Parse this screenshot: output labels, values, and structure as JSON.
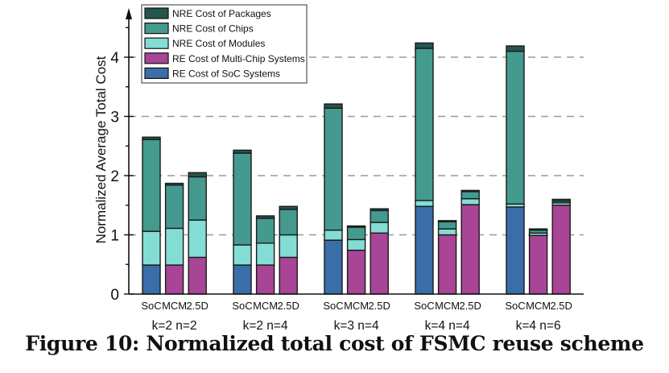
{
  "chart_data": {
    "type": "bar",
    "stacked": true,
    "title": "",
    "ylabel": "Normalized Average Total Cost",
    "xlabel": "",
    "ylim": [
      0,
      4.8
    ],
    "yticks": [
      0,
      1,
      2,
      3,
      4
    ],
    "ytick_labels": [
      "0",
      "1",
      "2",
      "3",
      "4"
    ],
    "grid": "horizontal dashed at y=1,2,3,4",
    "legend_position": "top-left",
    "groups": [
      "k=2 n=2",
      "k=2 n=4",
      "k=3 n=4",
      "k=4 n=4",
      "k=4 n=6"
    ],
    "bar_labels": [
      "SoC",
      "MCM",
      "2.5D"
    ],
    "legend": [
      {
        "name": "NRE Cost of Packages",
        "color": "#24564d"
      },
      {
        "name": "NRE Cost of Chips",
        "color": "#449a8e"
      },
      {
        "name": "NRE Cost of Modules",
        "color": "#84ddd4"
      },
      {
        "name": "RE Cost of Multi-Chip Systems",
        "color": "#a84596"
      },
      {
        "name": "RE Cost of SoC Systems",
        "color": "#3a6ea8"
      }
    ],
    "series_order_bottom_to_top": [
      "RE",
      "NRE Cost of Modules",
      "NRE Cost of Chips",
      "NRE Cost of Packages"
    ],
    "bars": [
      {
        "group": "k=2 n=2",
        "label": "SoC",
        "re_type": "soc",
        "re": 0.49,
        "modules": 0.57,
        "chips": 1.55,
        "packages": 0.04,
        "total": 2.65
      },
      {
        "group": "k=2 n=2",
        "label": "MCM",
        "re_type": "mcm",
        "re": 0.49,
        "modules": 0.62,
        "chips": 0.73,
        "packages": 0.03,
        "total": 1.87
      },
      {
        "group": "k=2 n=2",
        "label": "2.5D",
        "re_type": "mcm",
        "re": 0.62,
        "modules": 0.63,
        "chips": 0.73,
        "packages": 0.07,
        "total": 2.05
      },
      {
        "group": "k=2 n=4",
        "label": "SoC",
        "re_type": "soc",
        "re": 0.49,
        "modules": 0.34,
        "chips": 1.55,
        "packages": 0.05,
        "total": 2.43
      },
      {
        "group": "k=2 n=4",
        "label": "MCM",
        "re_type": "mcm",
        "re": 0.49,
        "modules": 0.37,
        "chips": 0.42,
        "packages": 0.04,
        "total": 1.32
      },
      {
        "group": "k=2 n=4",
        "label": "2.5D",
        "re_type": "mcm",
        "re": 0.62,
        "modules": 0.38,
        "chips": 0.43,
        "packages": 0.05,
        "total": 1.48
      },
      {
        "group": "k=3 n=4",
        "label": "SoC",
        "re_type": "soc",
        "re": 0.91,
        "modules": 0.17,
        "chips": 2.06,
        "packages": 0.07,
        "total": 3.21
      },
      {
        "group": "k=3 n=4",
        "label": "MCM",
        "re_type": "mcm",
        "re": 0.74,
        "modules": 0.18,
        "chips": 0.21,
        "packages": 0.02,
        "total": 1.15
      },
      {
        "group": "k=3 n=4",
        "label": "2.5D",
        "re_type": "mcm",
        "re": 1.03,
        "modules": 0.18,
        "chips": 0.2,
        "packages": 0.03,
        "total": 1.44
      },
      {
        "group": "k=4 n=4",
        "label": "SoC",
        "re_type": "soc",
        "re": 1.48,
        "modules": 0.1,
        "chips": 2.57,
        "packages": 0.09,
        "total": 4.24
      },
      {
        "group": "k=4 n=4",
        "label": "MCM",
        "re_type": "mcm",
        "re": 1.0,
        "modules": 0.1,
        "chips": 0.12,
        "packages": 0.02,
        "total": 1.24
      },
      {
        "group": "k=4 n=4",
        "label": "2.5D",
        "re_type": "mcm",
        "re": 1.51,
        "modules": 0.1,
        "chips": 0.12,
        "packages": 0.02,
        "total": 1.75
      },
      {
        "group": "k=4 n=6",
        "label": "SoC",
        "re_type": "soc",
        "re": 1.47,
        "modules": 0.05,
        "chips": 2.58,
        "packages": 0.09,
        "total": 4.19
      },
      {
        "group": "k=4 n=6",
        "label": "MCM",
        "re_type": "mcm",
        "re": 0.99,
        "modules": 0.04,
        "chips": 0.05,
        "packages": 0.02,
        "total": 1.1
      },
      {
        "group": "k=4 n=6",
        "label": "2.5D",
        "re_type": "mcm",
        "re": 1.5,
        "modules": 0.04,
        "chips": 0.03,
        "packages": 0.03,
        "total": 1.6
      }
    ]
  },
  "colors": {
    "packages": "#24564d",
    "chips": "#449a8e",
    "modules": "#84ddd4",
    "re_mcm": "#a84596",
    "re_soc": "#3a6ea8",
    "grid": "#9a9a9a",
    "outline": "#1a1a1a"
  },
  "caption": "Figure 10: Normalized total cost of FSMC reuse scheme"
}
